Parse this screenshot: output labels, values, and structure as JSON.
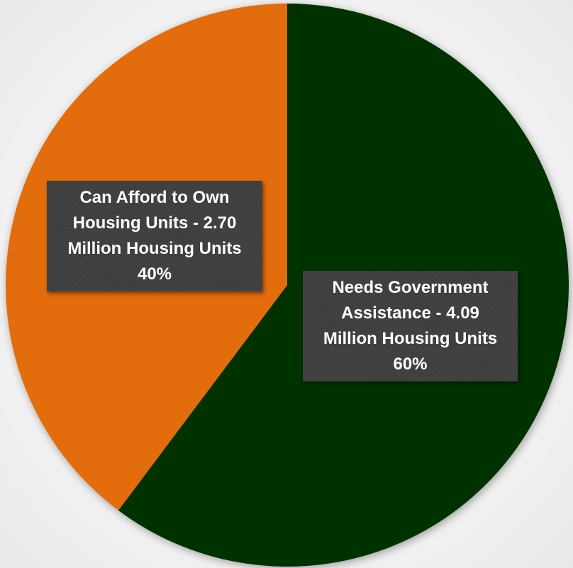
{
  "chart_data": {
    "type": "pie",
    "title": "",
    "series": [
      {
        "values": [
          4.09,
          2.7
        ]
      }
    ],
    "categories": [
      "Needs Government Assistance",
      "Can Afford to Own Housing Units"
    ],
    "slices": [
      {
        "label": "Needs Government Assistance",
        "value": 4.09,
        "unit": "Million Housing Units",
        "percent": 60,
        "color": "#003300"
      },
      {
        "label": "Can Afford to Own Housing Units",
        "value": 2.7,
        "unit": "Million Housing Units",
        "percent": 40,
        "color": "#e36c09"
      }
    ],
    "start_angle_deg": 0,
    "direction": "clockwise",
    "legend": "none"
  },
  "labels": {
    "orange": {
      "line1": "Can Afford to Own",
      "line2": "Housing Units - 2.70",
      "line3": "Million Housing Units",
      "percent": "40%"
    },
    "green": {
      "line1": "Needs Government",
      "line2": "Assistance - 4.09",
      "line3": "Million Housing Units",
      "percent": "60%"
    }
  }
}
